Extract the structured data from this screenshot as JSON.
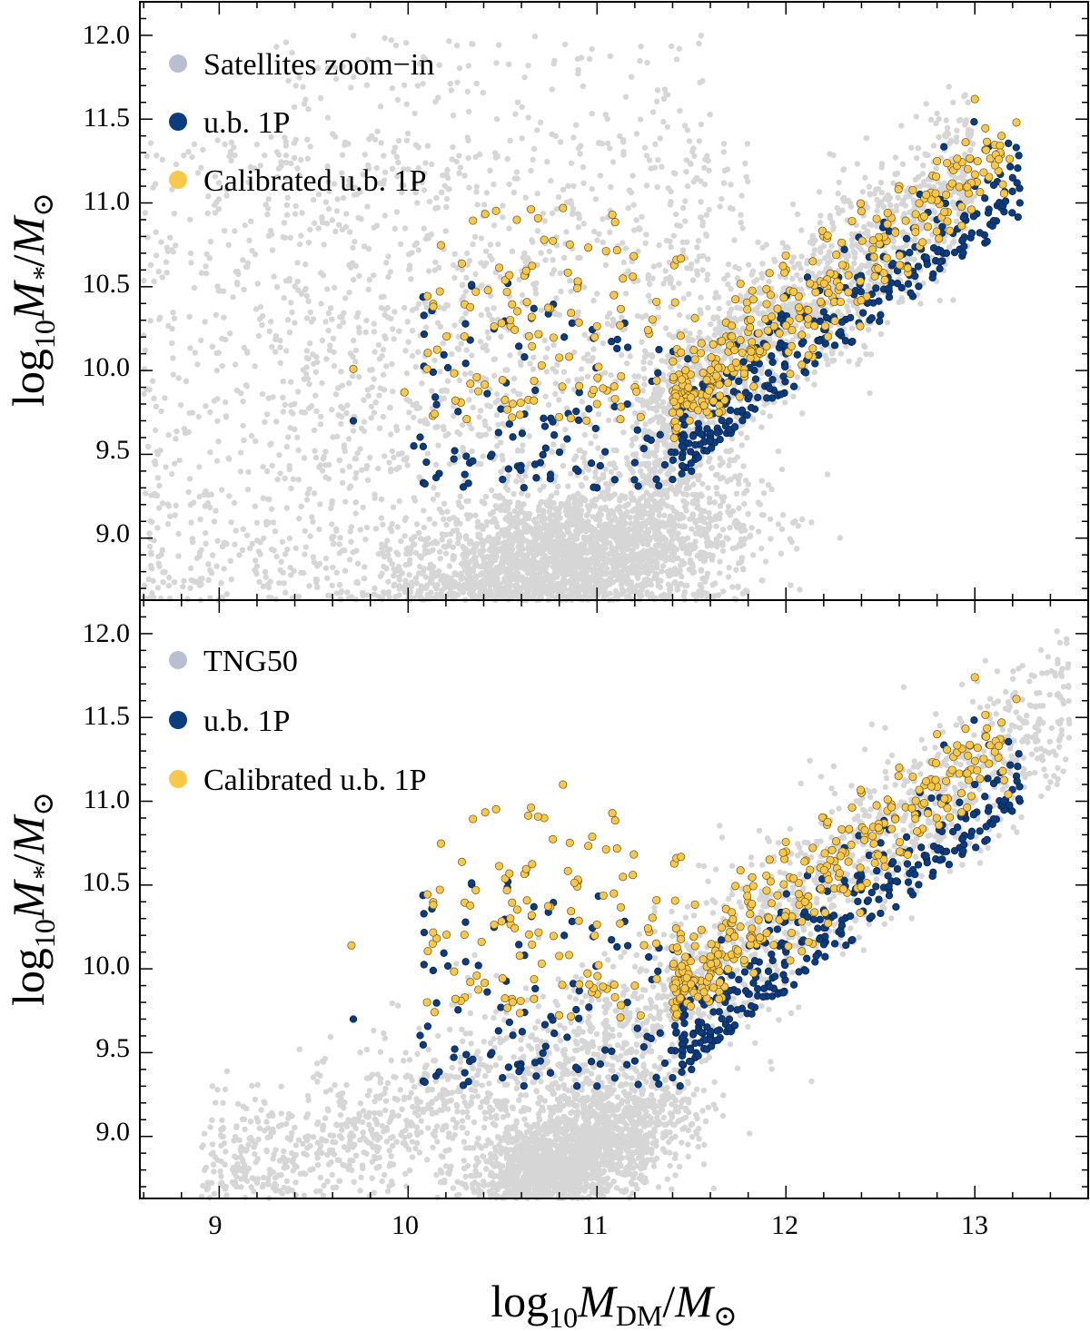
{
  "chart_data": [
    {
      "type": "scatter",
      "panel": "top",
      "xlabel": "",
      "ylabel_parts": {
        "log": "log",
        "sub": "10",
        "mass": "M",
        "star": "*",
        "slash": "/",
        "sun": "M",
        "sun_sub": "⊙"
      },
      "xlim": [
        8.58,
        13.6
      ],
      "ylim": [
        8.63,
        12.2
      ],
      "yticks": [
        "9.0",
        "9.5",
        "10.0",
        "10.5",
        "11.0",
        "11.5",
        "12.0"
      ],
      "ytick_values": [
        9.0,
        9.5,
        10.0,
        10.5,
        11.0,
        11.5,
        12.0
      ],
      "legend": {
        "position": "top-left",
        "entries": [
          {
            "label": "Satellites zoom−in",
            "color": "#b7bfd1"
          },
          {
            "label": "u.b. 1P",
            "color": "#0b3c7d"
          },
          {
            "label": "Calibrated u.b. 1P",
            "color": "#f8c84c"
          }
        ]
      },
      "series": [
        {
          "name": "Satellites zoom−in",
          "color": "#d6d6d6",
          "n_points": 6000,
          "x": [
            10.2,
            10.5,
            10.8,
            11.0,
            11.2,
            11.4,
            11.6,
            11.8,
            12.0,
            12.2,
            12.4,
            12.6,
            12.8,
            13.0,
            13.3,
            9.0,
            9.5,
            10.0
          ],
          "y": [
            9.2,
            9.0,
            9.1,
            9.2,
            9.3,
            9.6,
            9.9,
            10.1,
            10.4,
            10.6,
            10.8,
            11.0,
            11.2,
            11.4,
            11.6,
            10.3,
            10.8,
            11.5
          ],
          "note": "dense gray cloud peaking near (10.7, 8.9); broad scatter to low masses"
        },
        {
          "name": "u.b. 1P",
          "color": "#0b3c7d",
          "x": [
            9.71,
            10.03,
            10.08,
            10.3,
            10.5,
            10.7,
            10.9,
            11.0,
            11.2,
            11.4,
            11.5,
            11.6,
            11.8,
            12.0,
            12.2,
            12.4,
            12.6,
            12.8,
            13.0,
            13.2
          ],
          "y": [
            9.7,
            9.55,
            9.33,
            9.38,
            9.35,
            9.45,
            9.4,
            9.3,
            9.45,
            9.35,
            9.4,
            9.6,
            9.85,
            10.1,
            10.35,
            10.55,
            10.7,
            10.9,
            11.1,
            11.15
          ]
        },
        {
          "name": "Calibrated u.b. 1P",
          "color": "#f8c84c",
          "x": [
            9.71,
            9.98,
            10.1,
            10.13,
            10.31,
            10.55,
            10.72,
            10.82,
            11.0,
            11.2,
            11.4,
            11.6,
            11.8,
            12.0,
            12.2,
            12.4,
            12.6,
            12.8,
            13.0,
            13.22
          ],
          "y": [
            10.01,
            9.87,
            10.01,
            9.73,
            9.71,
            9.72,
            10.78,
            10.97,
            9.8,
            9.9,
            9.75,
            9.9,
            10.3,
            10.6,
            10.8,
            10.95,
            11.1,
            11.25,
            11.62,
            11.48
          ]
        }
      ]
    },
    {
      "type": "scatter",
      "panel": "bottom",
      "xlabel_parts": {
        "log": "log",
        "sub": "10",
        "mass": "M",
        "dm": "DM",
        "slash": "/",
        "sun": "M",
        "sun_sub": "⊙"
      },
      "ylabel_parts": {
        "log": "log",
        "sub": "10",
        "mass": "M",
        "star": "*",
        "slash": "/",
        "sun": "M",
        "sun_sub": "⊙"
      },
      "xlim": [
        8.58,
        13.6
      ],
      "ylim": [
        8.63,
        12.2
      ],
      "xticks": [
        "9",
        "10",
        "11",
        "12",
        "13"
      ],
      "xtick_values": [
        9,
        10,
        11,
        12,
        13
      ],
      "yticks": [
        "9.0",
        "9.5",
        "10.0",
        "10.5",
        "11.0",
        "11.5",
        "12.0"
      ],
      "ytick_values": [
        9.0,
        9.5,
        10.0,
        10.5,
        11.0,
        11.5,
        12.0
      ],
      "legend": {
        "position": "top-left",
        "entries": [
          {
            "label": "TNG50",
            "color": "#b7bfd1"
          },
          {
            "label": "u.b. 1P",
            "color": "#0b3c7d"
          },
          {
            "label": "Calibrated u.b. 1P",
            "color": "#f8c84c"
          }
        ]
      },
      "series": [
        {
          "name": "TNG50",
          "color": "#d6d6d6",
          "n_points": 5000,
          "x": [
            9.0,
            9.5,
            10.0,
            10.5,
            11.0,
            11.5,
            12.0,
            12.5,
            13.0,
            13.5
          ],
          "y": [
            8.7,
            8.95,
            9.2,
            9.45,
            9.0,
            9.9,
            10.5,
            11.0,
            11.5,
            11.9
          ],
          "note": "tight gray relation rising from (9, 8.7) to (13.5, 11.9) with dense core near (11, 8.9)"
        },
        {
          "name": "u.b. 1P",
          "color": "#0b3c7d",
          "x": [
            9.71,
            10.08,
            10.3,
            10.5,
            10.7,
            10.9,
            11.0,
            11.2,
            11.4,
            11.5,
            11.6,
            11.8,
            12.0,
            12.2,
            12.4,
            12.6,
            12.8,
            13.0,
            13.22
          ],
          "y": [
            9.7,
            9.33,
            9.38,
            9.35,
            9.45,
            9.4,
            9.3,
            9.45,
            9.35,
            9.4,
            9.6,
            9.85,
            10.1,
            10.35,
            10.55,
            10.7,
            10.9,
            11.1,
            11.15
          ]
        },
        {
          "name": "Calibrated u.b. 1P",
          "color": "#f8c84c",
          "x": [
            9.7,
            10.1,
            10.13,
            10.3,
            10.55,
            10.72,
            10.82,
            11.0,
            11.2,
            11.4,
            11.6,
            11.8,
            12.0,
            12.2,
            12.4,
            12.6,
            12.8,
            13.0,
            13.22
          ],
          "y": [
            10.14,
            9.8,
            10.15,
            9.83,
            9.82,
            10.9,
            11.1,
            9.85,
            9.9,
            9.8,
            10.0,
            10.4,
            10.7,
            10.9,
            11.05,
            11.2,
            11.4,
            11.74,
            11.61
          ]
        }
      ]
    }
  ]
}
